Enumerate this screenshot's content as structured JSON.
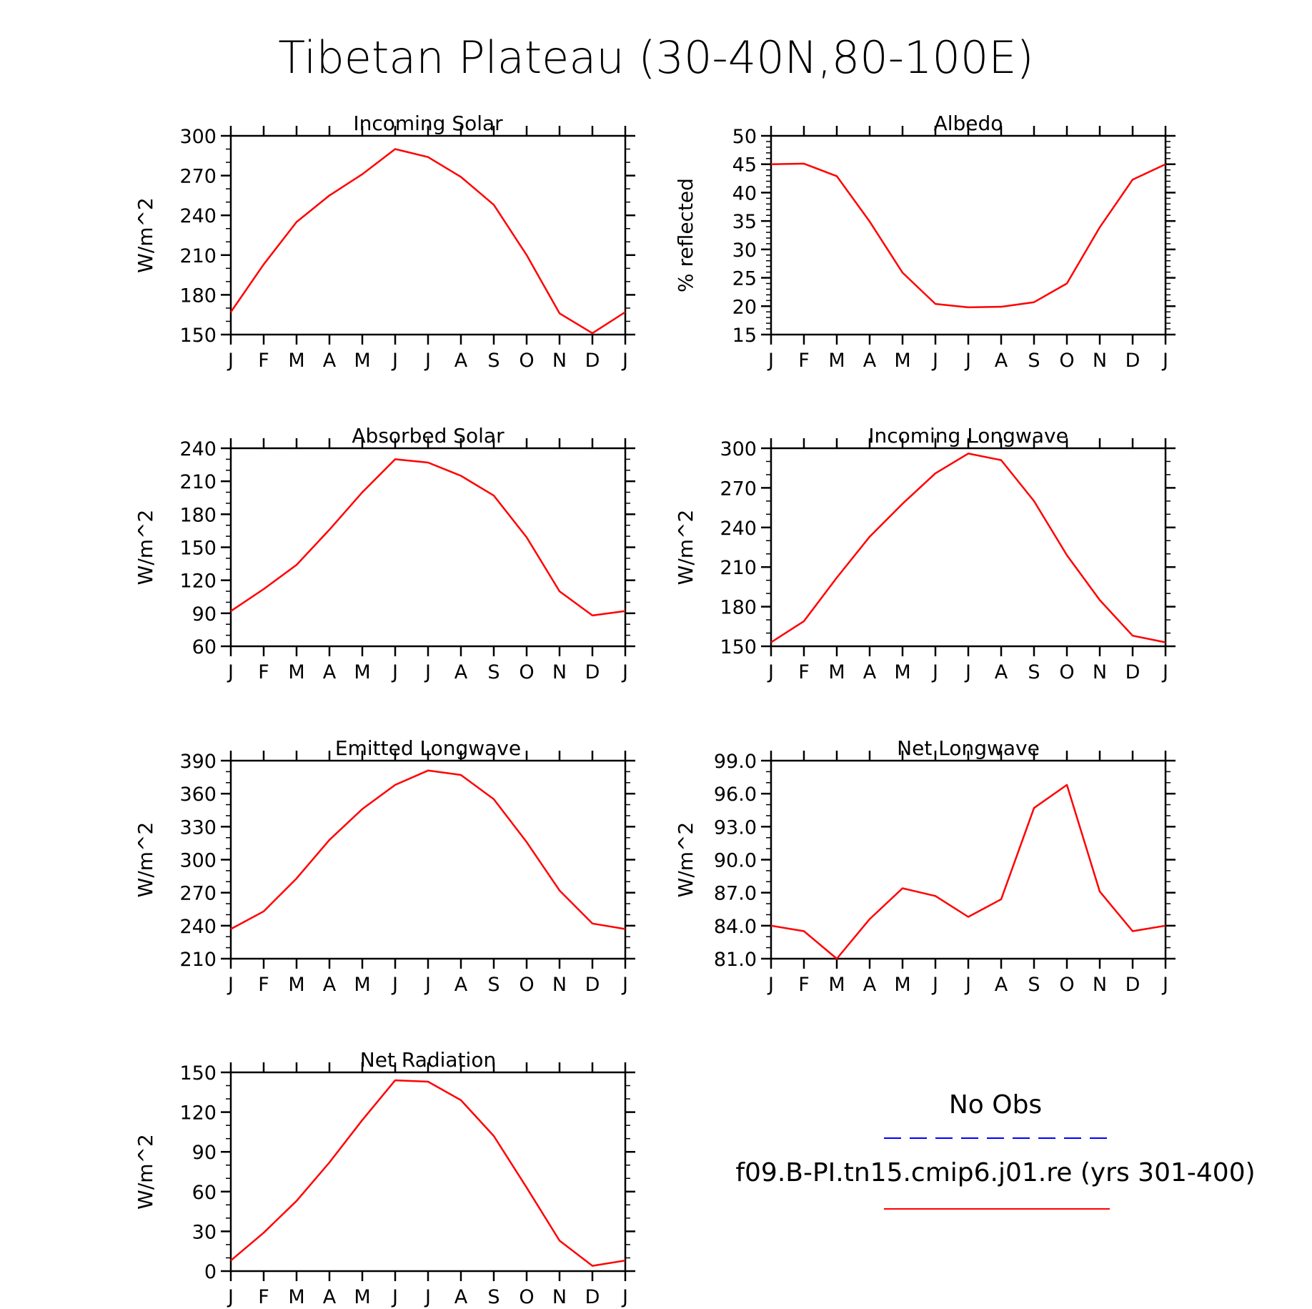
{
  "figure": {
    "title": "Tibetan Plateau (30-40N,80-100E)"
  },
  "legend": {
    "obs_label": "No Obs",
    "model_label": "f09.B-PI.tn15.cmip6.j01.re (yrs 301-400)",
    "obs_color": "#0000ff",
    "model_color": "#ff0000"
  },
  "chart_data": [
    {
      "type": "line",
      "title": "Incoming Solar",
      "ylabel": "W/m^2",
      "x": [
        "J",
        "F",
        "M",
        "A",
        "M",
        "J",
        "J",
        "A",
        "S",
        "O",
        "N",
        "D",
        "J"
      ],
      "ylim": [
        150,
        300
      ],
      "yticks": [
        "150",
        "180",
        "210",
        "240",
        "270",
        "300"
      ],
      "minor_step": 10,
      "series": [
        {
          "values": [
            167,
            203,
            235,
            255,
            271,
            290,
            284,
            269,
            248,
            210,
            166,
            151,
            167
          ]
        }
      ]
    },
    {
      "type": "line",
      "title": "Albedo",
      "ylabel": "% reflected",
      "x": [
        "J",
        "F",
        "M",
        "A",
        "M",
        "J",
        "J",
        "A",
        "S",
        "O",
        "N",
        "D",
        "J"
      ],
      "ylim": [
        15,
        50
      ],
      "yticks": [
        "15",
        "20",
        "25",
        "30",
        "35",
        "40",
        "45",
        "50"
      ],
      "minor_step": 1,
      "series": [
        {
          "values": [
            45.0,
            45.1,
            42.9,
            34.9,
            25.9,
            20.4,
            19.8,
            19.9,
            20.7,
            24.0,
            33.9,
            42.3,
            45.0
          ]
        }
      ]
    },
    {
      "type": "line",
      "title": "Absorbed Solar",
      "ylabel": "W/m^2",
      "x": [
        "J",
        "F",
        "M",
        "A",
        "M",
        "J",
        "J",
        "A",
        "S",
        "O",
        "N",
        "D",
        "J"
      ],
      "ylim": [
        60,
        240
      ],
      "yticks": [
        "60",
        "90",
        "120",
        "150",
        "180",
        "210",
        "240"
      ],
      "minor_step": 10,
      "series": [
        {
          "values": [
            92,
            112,
            134,
            166,
            200,
            230,
            227,
            215,
            197,
            159,
            110,
            88,
            92
          ]
        }
      ]
    },
    {
      "type": "line",
      "title": "Incoming Longwave",
      "ylabel": "W/m^2",
      "x": [
        "J",
        "F",
        "M",
        "A",
        "M",
        "J",
        "J",
        "A",
        "S",
        "O",
        "N",
        "D",
        "J"
      ],
      "ylim": [
        150,
        300
      ],
      "yticks": [
        "150",
        "180",
        "210",
        "240",
        "270",
        "300"
      ],
      "minor_step": 10,
      "series": [
        {
          "values": [
            153,
            169,
            202,
            233,
            258,
            281,
            296,
            291,
            260,
            219,
            185,
            158,
            153
          ]
        }
      ]
    },
    {
      "type": "line",
      "title": "Emitted Longwave",
      "ylabel": "W/m^2",
      "x": [
        "J",
        "F",
        "M",
        "A",
        "M",
        "J",
        "J",
        "A",
        "S",
        "O",
        "N",
        "D",
        "J"
      ],
      "ylim": [
        210,
        390
      ],
      "yticks": [
        "210",
        "240",
        "270",
        "300",
        "330",
        "360",
        "390"
      ],
      "minor_step": 10,
      "series": [
        {
          "values": [
            237,
            253,
            283,
            318,
            346,
            368,
            381,
            377,
            355,
            316,
            272,
            242,
            237
          ]
        }
      ]
    },
    {
      "type": "line",
      "title": "Net Longwave",
      "ylabel": "W/m^2",
      "x": [
        "J",
        "F",
        "M",
        "A",
        "M",
        "J",
        "J",
        "A",
        "S",
        "O",
        "N",
        "D",
        "J"
      ],
      "ylim": [
        81,
        99
      ],
      "yticks": [
        "81.0",
        "84.0",
        "87.0",
        "90.0",
        "93.0",
        "96.0",
        "99.0"
      ],
      "minor_step": 1,
      "series": [
        {
          "values": [
            84.0,
            83.5,
            81.0,
            84.6,
            87.4,
            86.7,
            84.8,
            86.4,
            94.7,
            96.8,
            87.1,
            83.5,
            84.0
          ]
        }
      ]
    },
    {
      "type": "line",
      "title": "Net Radiation",
      "ylabel": "W/m^2",
      "x": [
        "J",
        "F",
        "M",
        "A",
        "M",
        "J",
        "J",
        "A",
        "S",
        "O",
        "N",
        "D",
        "J"
      ],
      "ylim": [
        0,
        150
      ],
      "yticks": [
        "0",
        "30",
        "60",
        "90",
        "120",
        "150"
      ],
      "minor_step": 10,
      "series": [
        {
          "values": [
            8,
            29,
            53,
            82,
            114,
            144,
            143,
            129,
            102,
            63,
            23,
            4,
            8
          ]
        }
      ]
    }
  ]
}
